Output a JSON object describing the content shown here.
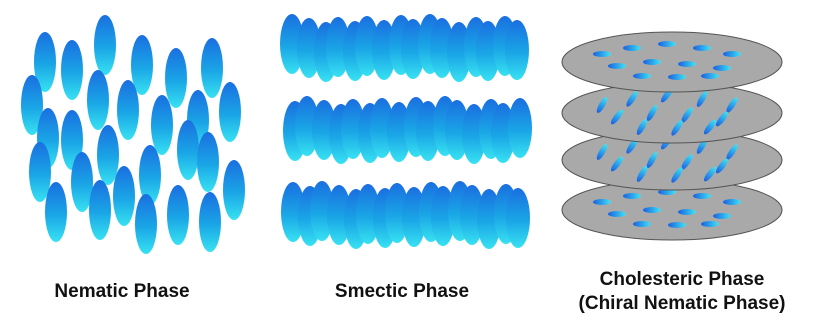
{
  "panels": [
    {
      "title": "Nematic Phase"
    },
    {
      "title": "Smectic Phase"
    },
    {
      "title": "Cholesteric Phase",
      "subtitle": "(Chiral Nematic Phase)"
    }
  ]
}
